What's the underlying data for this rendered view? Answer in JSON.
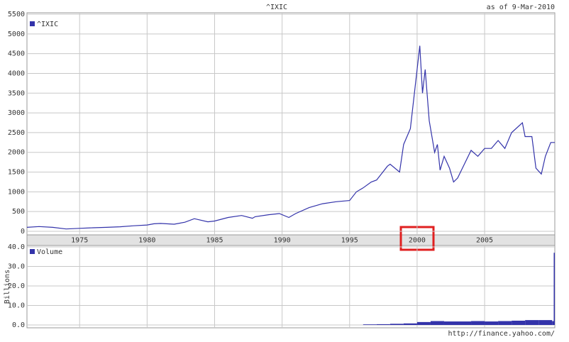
{
  "chart_data": [
    {
      "type": "line",
      "title": "^IXIC",
      "subtitle": "as of  9-Mar-2010",
      "x": [
        1971.1,
        1972,
        1973,
        1974,
        1975,
        1976,
        1977,
        1978,
        1979,
        1980,
        1980.5,
        1981,
        1982,
        1982.8,
        1983.5,
        1984.5,
        1985,
        1986,
        1987,
        1987.8,
        1988,
        1989,
        1989.8,
        1990.5,
        1991,
        1992,
        1993,
        1994,
        1995,
        1995.5,
        1996,
        1996.6,
        1997,
        1997.8,
        1998,
        1998.7,
        1999,
        1999.5,
        1999.8,
        2000.2,
        2000.4,
        2000.6,
        2000.9,
        2001.3,
        2001.5,
        2001.7,
        2002,
        2002.4,
        2002.7,
        2003,
        2003.5,
        2004,
        2004.5,
        2005,
        2005.5,
        2006,
        2006.5,
        2007,
        2007.8,
        2008,
        2008.5,
        2008.8,
        2009.2,
        2009.5,
        2009.9,
        2010.2
      ],
      "series": [
        {
          "name": "^IXIC",
          "color": "#3333aa",
          "values": [
            100,
            120,
            100,
            60,
            75,
            90,
            100,
            115,
            140,
            160,
            190,
            200,
            180,
            230,
            320,
            240,
            260,
            350,
            400,
            330,
            370,
            420,
            450,
            350,
            450,
            600,
            700,
            750,
            780,
            1000,
            1100,
            1250,
            1300,
            1650,
            1700,
            1500,
            2200,
            2600,
            3500,
            4700,
            3500,
            4100,
            2800,
            2000,
            2200,
            1550,
            1900,
            1600,
            1250,
            1350,
            1700,
            2050,
            1900,
            2100,
            2100,
            2300,
            2100,
            2500,
            2750,
            2400,
            2400,
            1600,
            1450,
            1900,
            2250,
            2250
          ]
        }
      ],
      "xlim": [
        1971.1,
        2010.2
      ],
      "xticks": [
        1975,
        1980,
        1985,
        1990,
        1995,
        2000,
        2005
      ],
      "ylim": [
        0,
        5500
      ],
      "yticks": [
        0,
        500,
        1000,
        1500,
        2000,
        2500,
        3000,
        3500,
        4000,
        4500,
        5000,
        5500
      ],
      "grid": true
    },
    {
      "type": "bar",
      "ylabel": "Billions",
      "x": [
        1996,
        1997,
        1998,
        1999,
        2000,
        2001,
        2002,
        2003,
        2004,
        2005,
        2006,
        2007,
        2008,
        2009,
        2010,
        2010.15
      ],
      "series": [
        {
          "name": "Volume",
          "color": "#3333aa",
          "values": [
            0.3,
            0.4,
            0.6,
            0.8,
            1.5,
            2.0,
            1.8,
            1.8,
            2.0,
            1.8,
            2.0,
            2.2,
            2.5,
            2.5,
            2.0,
            37
          ]
        }
      ],
      "xlim": [
        1971.1,
        2010.2
      ],
      "ylim": [
        0,
        40
      ],
      "yticks": [
        {
          "value": 0,
          "label": "0.0"
        },
        {
          "value": 10,
          "label": "10.0"
        },
        {
          "value": 20,
          "label": "20.0"
        },
        {
          "value": 30,
          "label": "30.0"
        },
        {
          "value": 40,
          "label": "40.0"
        }
      ],
      "grid": true
    }
  ],
  "source": "http://finance.yahoo.com/"
}
